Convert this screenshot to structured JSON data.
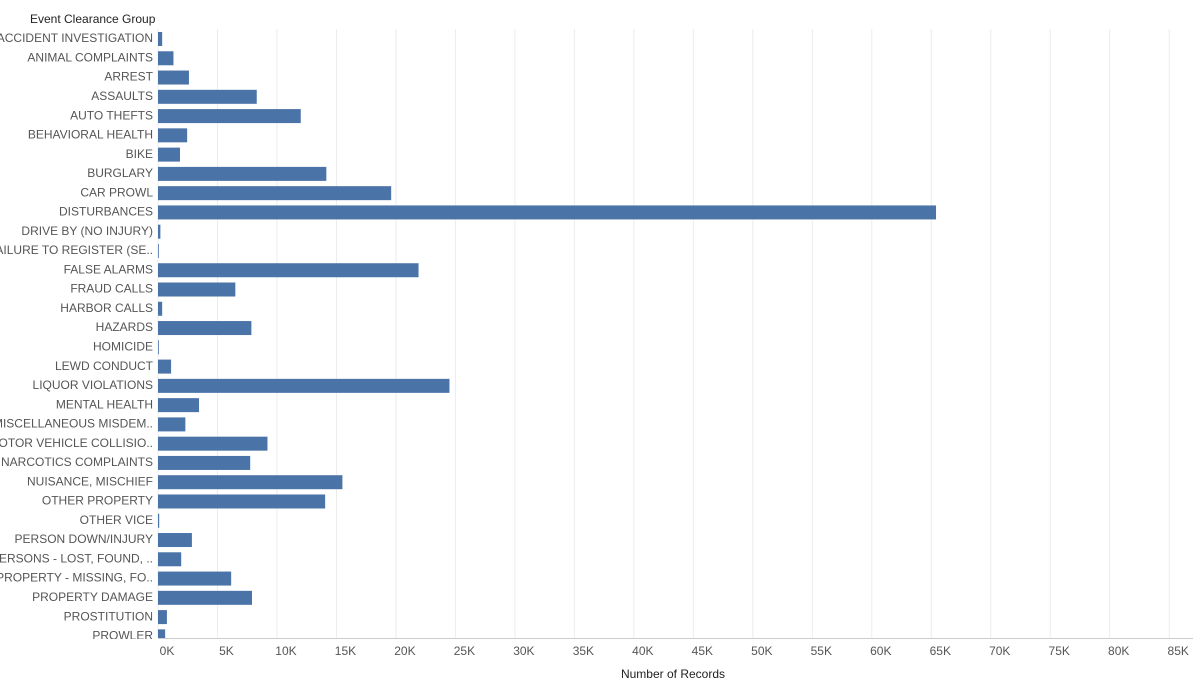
{
  "chart_data": {
    "type": "barh",
    "y_axis_title": "Event Clearance Group",
    "x_axis_title": "Number of Records",
    "color": "#4a73a8",
    "grid": true,
    "categories": [
      "ACCIDENT INVESTIGATION",
      "ANIMAL COMPLAINTS",
      "ARREST",
      "ASSAULTS",
      "AUTO THEFTS",
      "BEHAVIORAL HEALTH",
      "BIKE",
      "BURGLARY",
      "CAR PROWL",
      "DISTURBANCES",
      "DRIVE BY (NO INJURY)",
      "FAILURE TO REGISTER (SE..",
      "FALSE ALARMS",
      "FRAUD CALLS",
      "HARBOR CALLS",
      "HAZARDS",
      "HOMICIDE",
      "LEWD CONDUCT",
      "LIQUOR VIOLATIONS",
      "MENTAL HEALTH",
      "MISCELLANEOUS MISDEM..",
      "MOTOR VEHICLE COLLISIO..",
      "NARCOTICS COMPLAINTS",
      "NUISANCE, MISCHIEF",
      "OTHER PROPERTY",
      "OTHER VICE",
      "PERSON DOWN/INJURY",
      "PERSONS - LOST, FOUND, ..",
      "PROPERTY - MISSING, FO..",
      "PROPERTY DAMAGE",
      "PROSTITUTION",
      "PROWLER"
    ],
    "values": [
      350,
      1300,
      2600,
      8300,
      12000,
      2450,
      1850,
      14150,
      19600,
      65400,
      200,
      60,
      21900,
      6500,
      350,
      7850,
      30,
      1100,
      24500,
      3450,
      2300,
      9200,
      7750,
      15500,
      14050,
      100,
      2850,
      1950,
      6150,
      7900,
      750,
      600
    ],
    "xlim": [
      0,
      87000
    ],
    "xticks": [
      {
        "value": 0,
        "label": "0K"
      },
      {
        "value": 5000,
        "label": "5K"
      },
      {
        "value": 10000,
        "label": "10K"
      },
      {
        "value": 15000,
        "label": "15K"
      },
      {
        "value": 20000,
        "label": "20K"
      },
      {
        "value": 25000,
        "label": "25K"
      },
      {
        "value": 30000,
        "label": "30K"
      },
      {
        "value": 35000,
        "label": "35K"
      },
      {
        "value": 40000,
        "label": "40K"
      },
      {
        "value": 45000,
        "label": "45K"
      },
      {
        "value": 50000,
        "label": "50K"
      },
      {
        "value": 55000,
        "label": "55K"
      },
      {
        "value": 60000,
        "label": "60K"
      },
      {
        "value": 65000,
        "label": "65K"
      },
      {
        "value": 70000,
        "label": "70K"
      },
      {
        "value": 75000,
        "label": "75K"
      },
      {
        "value": 80000,
        "label": "80K"
      },
      {
        "value": 85000,
        "label": "85K"
      }
    ]
  }
}
